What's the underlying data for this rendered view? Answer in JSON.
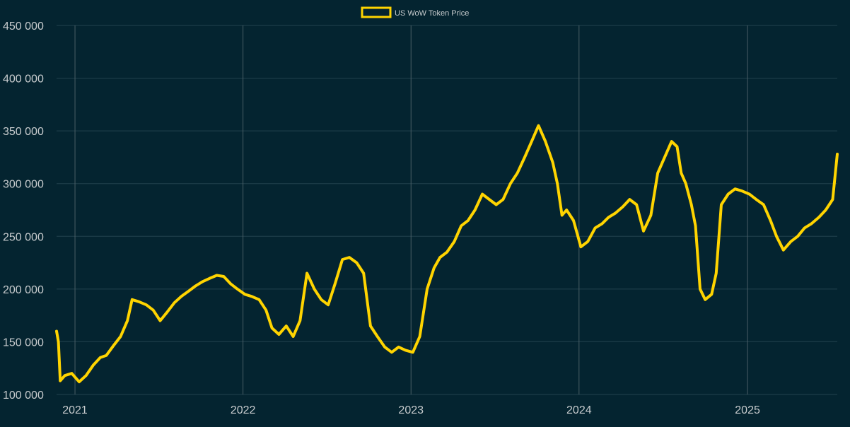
{
  "chart_data": {
    "type": "line",
    "title": "",
    "xlabel": "",
    "ylabel": "",
    "legend": {
      "position": "top-center",
      "entries": [
        "US WoW Token Price"
      ]
    },
    "grid": true,
    "colors": {
      "background": "#042430",
      "series": "#FFD400",
      "grid": "#22424e",
      "text": "#c8ccce"
    },
    "x_range": [
      "2020-11-22",
      "2025-07-15"
    ],
    "ylim": [
      100000,
      450000
    ],
    "y_ticks": [
      100000,
      150000,
      200000,
      250000,
      300000,
      350000,
      400000,
      450000
    ],
    "y_tick_labels": [
      "100 000",
      "150 000",
      "200 000",
      "250 000",
      "300 000",
      "350 000",
      "400 000",
      "450 000"
    ],
    "x_ticks": [
      "2021-01-01",
      "2022-01-01",
      "2023-01-01",
      "2024-01-01",
      "2025-01-01"
    ],
    "x_tick_labels": [
      "2021",
      "2022",
      "2023",
      "2024",
      "2025"
    ],
    "series": [
      {
        "name": "US WoW Token Price",
        "color": "#FFD400",
        "x": [
          "2020-11-22",
          "2020-11-26",
          "2020-11-30",
          "2020-12-10",
          "2020-12-25",
          "2021-01-10",
          "2021-01-25",
          "2021-02-10",
          "2021-02-25",
          "2021-03-10",
          "2021-03-25",
          "2021-04-10",
          "2021-04-25",
          "2021-05-05",
          "2021-05-20",
          "2021-06-05",
          "2021-06-20",
          "2021-07-05",
          "2021-07-20",
          "2021-08-05",
          "2021-08-20",
          "2021-09-05",
          "2021-09-20",
          "2021-10-05",
          "2021-10-20",
          "2021-11-05",
          "2021-11-20",
          "2021-12-05",
          "2021-12-20",
          "2022-01-05",
          "2022-01-20",
          "2022-02-05",
          "2022-02-20",
          "2022-03-05",
          "2022-03-20",
          "2022-04-05",
          "2022-04-20",
          "2022-05-05",
          "2022-05-20",
          "2022-06-05",
          "2022-06-20",
          "2022-07-05",
          "2022-07-20",
          "2022-08-05",
          "2022-08-20",
          "2022-09-05",
          "2022-09-20",
          "2022-10-05",
          "2022-10-20",
          "2022-11-05",
          "2022-11-20",
          "2022-12-05",
          "2022-12-20",
          "2023-01-05",
          "2023-01-20",
          "2023-02-05",
          "2023-02-20",
          "2023-03-05",
          "2023-03-20",
          "2023-04-05",
          "2023-04-20",
          "2023-05-05",
          "2023-05-20",
          "2023-06-05",
          "2023-06-20",
          "2023-07-05",
          "2023-07-20",
          "2023-08-05",
          "2023-08-20",
          "2023-09-05",
          "2023-09-20",
          "2023-10-05",
          "2023-10-20",
          "2023-11-05",
          "2023-11-15",
          "2023-11-25",
          "2023-12-05",
          "2023-12-20",
          "2024-01-05",
          "2024-01-20",
          "2024-02-05",
          "2024-02-20",
          "2024-03-05",
          "2024-03-20",
          "2024-04-05",
          "2024-04-20",
          "2024-05-05",
          "2024-05-20",
          "2024-06-05",
          "2024-06-20",
          "2024-07-05",
          "2024-07-20",
          "2024-08-01",
          "2024-08-10",
          "2024-08-20",
          "2024-09-01",
          "2024-09-10",
          "2024-09-20",
          "2024-10-01",
          "2024-10-15",
          "2024-10-25",
          "2024-11-05",
          "2024-11-20",
          "2024-12-05",
          "2024-12-20",
          "2025-01-05",
          "2025-01-20",
          "2025-02-05",
          "2025-02-20",
          "2025-03-05",
          "2025-03-20",
          "2025-04-05",
          "2025-04-20",
          "2025-05-05",
          "2025-05-20",
          "2025-06-05",
          "2025-06-20",
          "2025-07-05",
          "2025-07-15"
        ],
        "values": [
          160000,
          150000,
          113000,
          118000,
          120000,
          112000,
          118000,
          128000,
          135000,
          137000,
          146000,
          155000,
          170000,
          190000,
          188000,
          185000,
          180000,
          170000,
          178000,
          187000,
          193000,
          198000,
          203000,
          207000,
          210000,
          213000,
          212000,
          205000,
          200000,
          195000,
          193000,
          190000,
          180000,
          163000,
          157000,
          165000,
          155000,
          170000,
          215000,
          200000,
          190000,
          185000,
          205000,
          228000,
          230000,
          225000,
          215000,
          165000,
          155000,
          145000,
          140000,
          145000,
          142000,
          140000,
          155000,
          200000,
          220000,
          230000,
          235000,
          245000,
          260000,
          265000,
          275000,
          290000,
          285000,
          280000,
          285000,
          300000,
          310000,
          325000,
          340000,
          355000,
          340000,
          320000,
          300000,
          270000,
          275000,
          265000,
          240000,
          245000,
          258000,
          262000,
          268000,
          272000,
          278000,
          285000,
          280000,
          255000,
          270000,
          310000,
          325000,
          340000,
          335000,
          310000,
          300000,
          280000,
          260000,
          200000,
          190000,
          195000,
          215000,
          280000,
          290000,
          295000,
          293000,
          290000,
          285000,
          280000,
          265000,
          250000,
          237000,
          245000,
          250000,
          258000,
          262000,
          268000,
          275000,
          285000,
          328000
        ]
      }
    ],
    "annotations": []
  }
}
